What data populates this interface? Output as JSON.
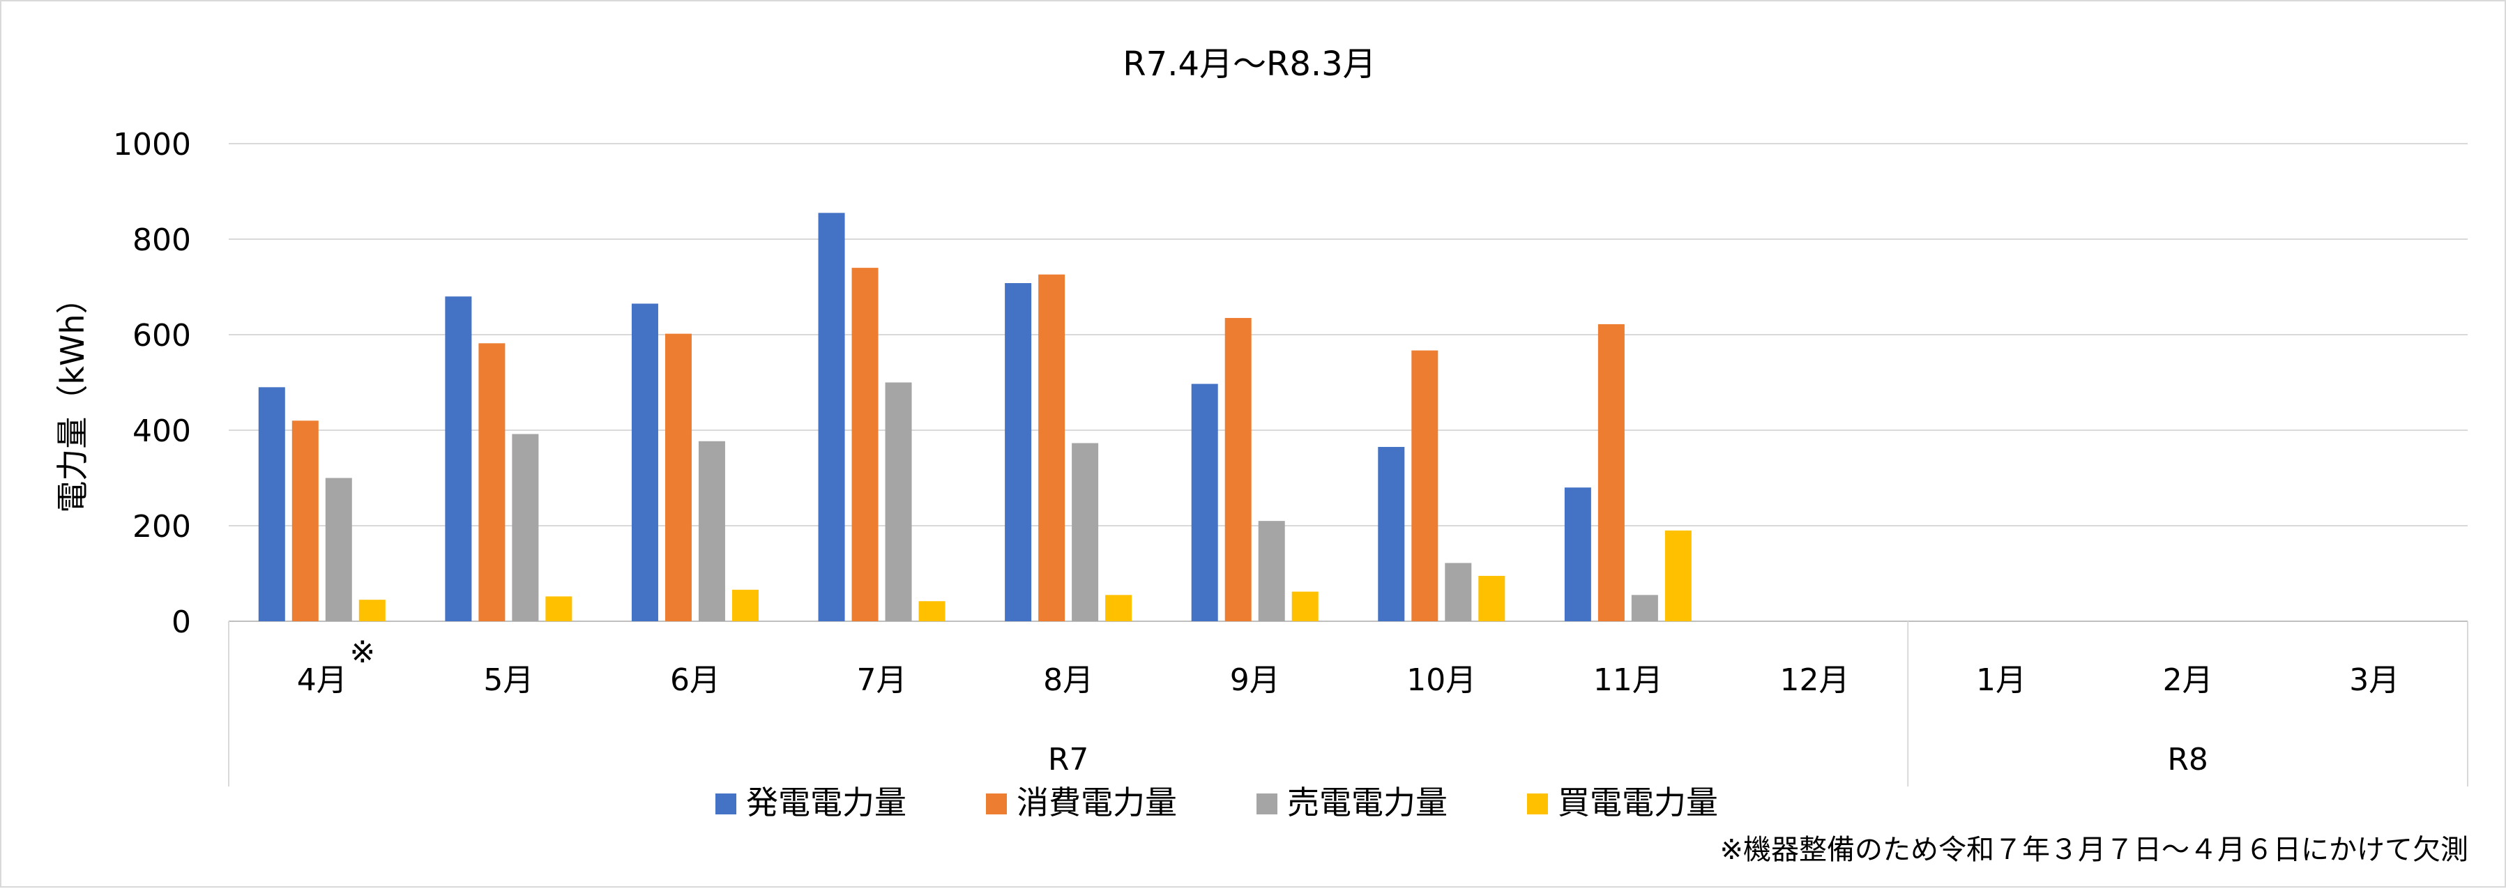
{
  "chart_data": {
    "type": "bar",
    "title": "R7.4月～R8.3月",
    "ylabel": "電力量（kWh）",
    "xlabel": "",
    "ylim": [
      0,
      1000
    ],
    "yticks": [
      0,
      200,
      400,
      600,
      800,
      1000
    ],
    "grid": true,
    "legend_position": "bottom",
    "categories": [
      "4月",
      "5月",
      "6月",
      "7月",
      "8月",
      "9月",
      "10月",
      "11月",
      "12月",
      "1月",
      "2月",
      "3月"
    ],
    "category_marks": [
      "※",
      "",
      "",
      "",
      "",
      "",
      "",
      "",
      "",
      "",
      "",
      ""
    ],
    "groups": [
      {
        "label": "R7",
        "count": 9
      },
      {
        "label": "R8",
        "count": 3
      }
    ],
    "series": [
      {
        "name": "発電電力量",
        "color": "#4472C4",
        "values": [
          490,
          680,
          665,
          855,
          708,
          497,
          365,
          280,
          null,
          null,
          null,
          null
        ]
      },
      {
        "name": "消費電力量",
        "color": "#ED7D31",
        "values": [
          420,
          582,
          602,
          740,
          726,
          635,
          567,
          622,
          null,
          null,
          null,
          null
        ]
      },
      {
        "name": "売電電力量",
        "color": "#A5A5A5",
        "values": [
          300,
          392,
          377,
          500,
          373,
          210,
          122,
          55,
          null,
          null,
          null,
          null
        ]
      },
      {
        "name": "買電電力量",
        "color": "#FFC000",
        "values": [
          45,
          52,
          66,
          42,
          55,
          62,
          95,
          190,
          null,
          null,
          null,
          null
        ]
      }
    ],
    "footnote": "※機器整備のため令和７年３月７日～４月６日にかけて欠測"
  }
}
